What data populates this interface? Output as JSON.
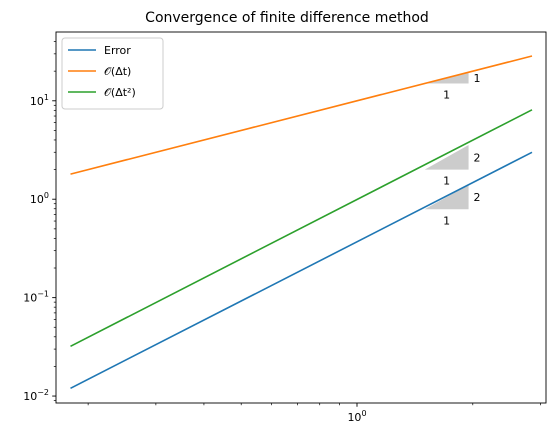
{
  "chart_data": {
    "type": "line",
    "title": "Convergence of finite difference method",
    "xlabel": "",
    "ylabel": "",
    "xscale": "log",
    "yscale": "log",
    "xlim": [
      0.165,
      3.1
    ],
    "ylim": [
      0.0085,
      50
    ],
    "grid": false,
    "legend_position": "top-left",
    "x_tick_labels": [
      {
        "value": 1,
        "base": "10",
        "exp": "0"
      }
    ],
    "y_tick_labels": [
      {
        "value": 0.01,
        "base": "10",
        "exp": "−2"
      },
      {
        "value": 0.1,
        "base": "10",
        "exp": "−1"
      },
      {
        "value": 1,
        "base": "10",
        "exp": "0"
      },
      {
        "value": 10,
        "base": "10",
        "exp": "1"
      }
    ],
    "series": [
      {
        "name": "Error",
        "color": "#1f77b4",
        "x": [
          0.18,
          2.85
        ],
        "y": [
          0.012,
          3.0
        ]
      },
      {
        "name": "𝒪(Δt)",
        "color": "#ff7f0e",
        "x": [
          0.18,
          2.85
        ],
        "y": [
          1.8,
          28.5
        ]
      },
      {
        "name": "𝒪(Δt²)",
        "color": "#2ca02c",
        "x": [
          0.18,
          2.85
        ],
        "y": [
          0.032,
          8.1
        ]
      }
    ],
    "slope_triangles": [
      {
        "x0": 1.5,
        "x1": 1.95,
        "y0": 15.0,
        "y1": 19.5,
        "rise_label": "1",
        "run_label": "1"
      },
      {
        "x0": 1.5,
        "x1": 1.95,
        "y0": 2.0,
        "y1": 3.55,
        "rise_label": "2",
        "run_label": "1"
      },
      {
        "x0": 1.5,
        "x1": 1.95,
        "y0": 0.79,
        "y1": 1.4,
        "rise_label": "2",
        "run_label": "1"
      }
    ],
    "triangle_color": "#cccccc"
  }
}
